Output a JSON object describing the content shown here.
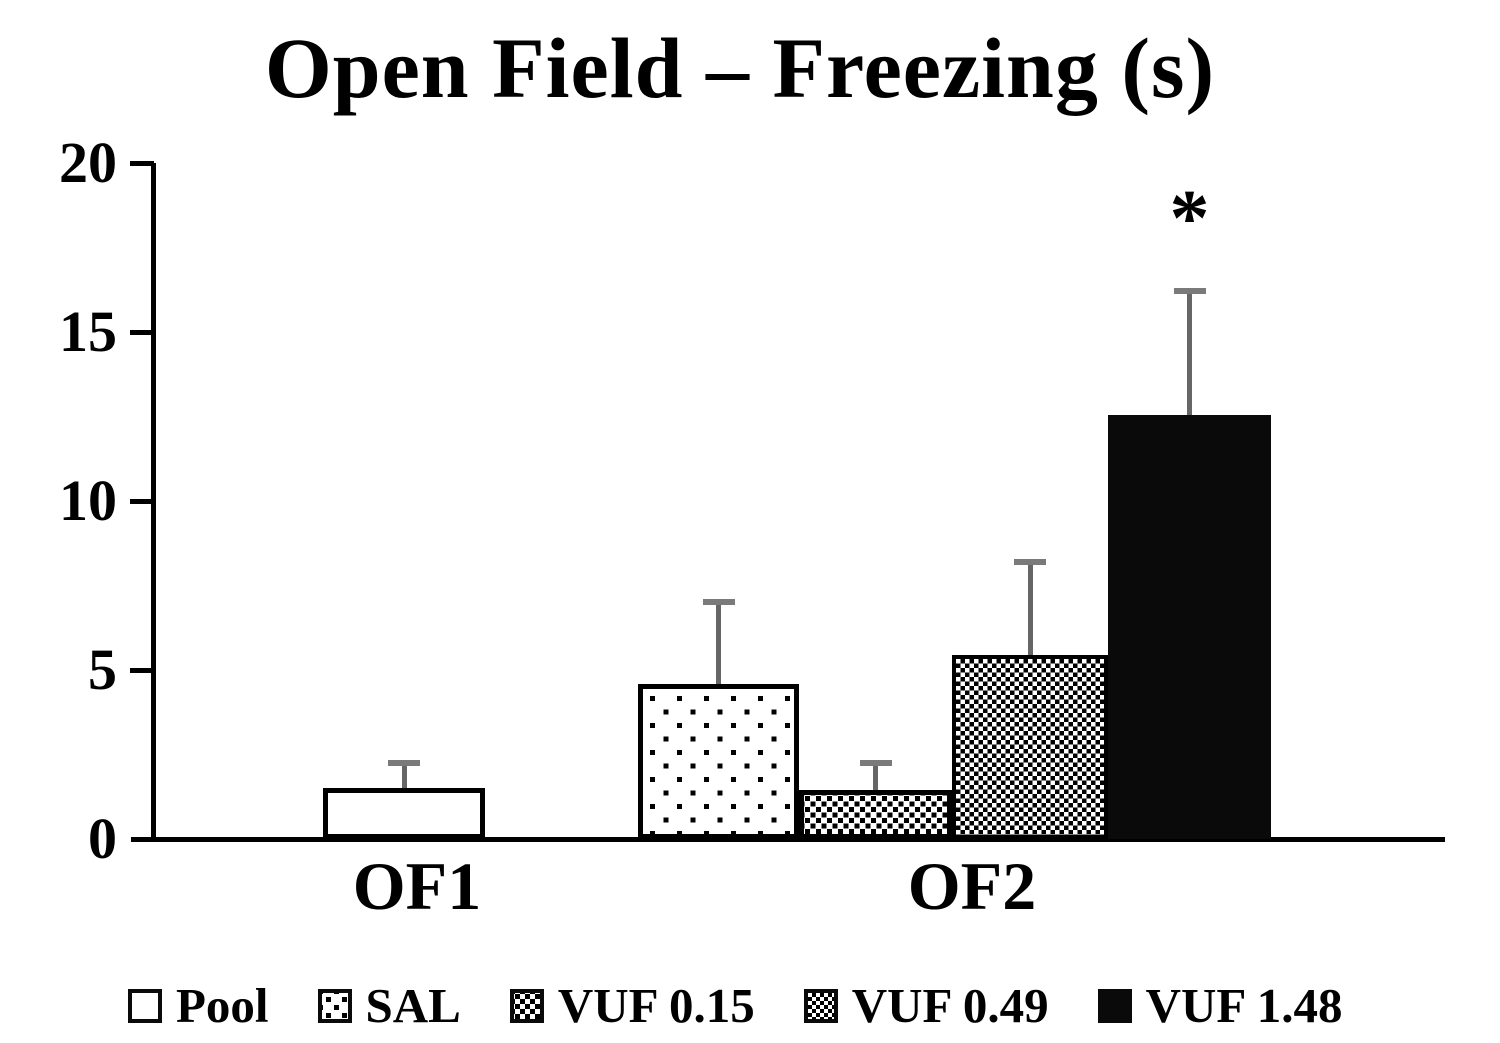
{
  "chart_data": {
    "type": "bar",
    "title": "Open Field – Freezing (s)",
    "xlabel": "",
    "ylabel": "",
    "ylim": [
      0,
      20
    ],
    "yticks": [
      0,
      5,
      10,
      15,
      20
    ],
    "grid": false,
    "legend_position": "bottom",
    "groups": [
      "OF1",
      "OF2"
    ],
    "bars": [
      {
        "series": "Pool",
        "group": "OF1",
        "value": 1.5,
        "error_upper": 0.75,
        "pattern": "open",
        "annotation": ""
      },
      {
        "series": "SAL",
        "group": "OF2",
        "value": 4.6,
        "error_upper": 2.4,
        "pattern": "dots-sparse",
        "annotation": ""
      },
      {
        "series": "VUF 0.15",
        "group": "OF2",
        "value": 1.45,
        "error_upper": 0.8,
        "pattern": "dots-dense",
        "annotation": ""
      },
      {
        "series": "VUF 0.49",
        "group": "OF2",
        "value": 5.45,
        "error_upper": 2.75,
        "pattern": "checker",
        "annotation": ""
      },
      {
        "series": "VUF 1.48",
        "group": "OF2",
        "value": 12.55,
        "error_upper": 3.65,
        "pattern": "solid",
        "annotation": "*"
      }
    ],
    "legend": [
      {
        "label": "Pool",
        "pattern": "open"
      },
      {
        "label": "SAL",
        "pattern": "dots-sparse"
      },
      {
        "label": "VUF 0.15",
        "pattern": "dots-dense"
      },
      {
        "label": "VUF 0.49",
        "pattern": "checker"
      },
      {
        "label": "VUF 1.48",
        "pattern": "solid"
      }
    ],
    "colors": {
      "bar_fill_black": "#0a0a0a",
      "error_bar_line": "#666666",
      "error_bar_cap": "#7a7a7a",
      "axis": "#000000",
      "background": "#ffffff",
      "text": "#000000"
    }
  }
}
